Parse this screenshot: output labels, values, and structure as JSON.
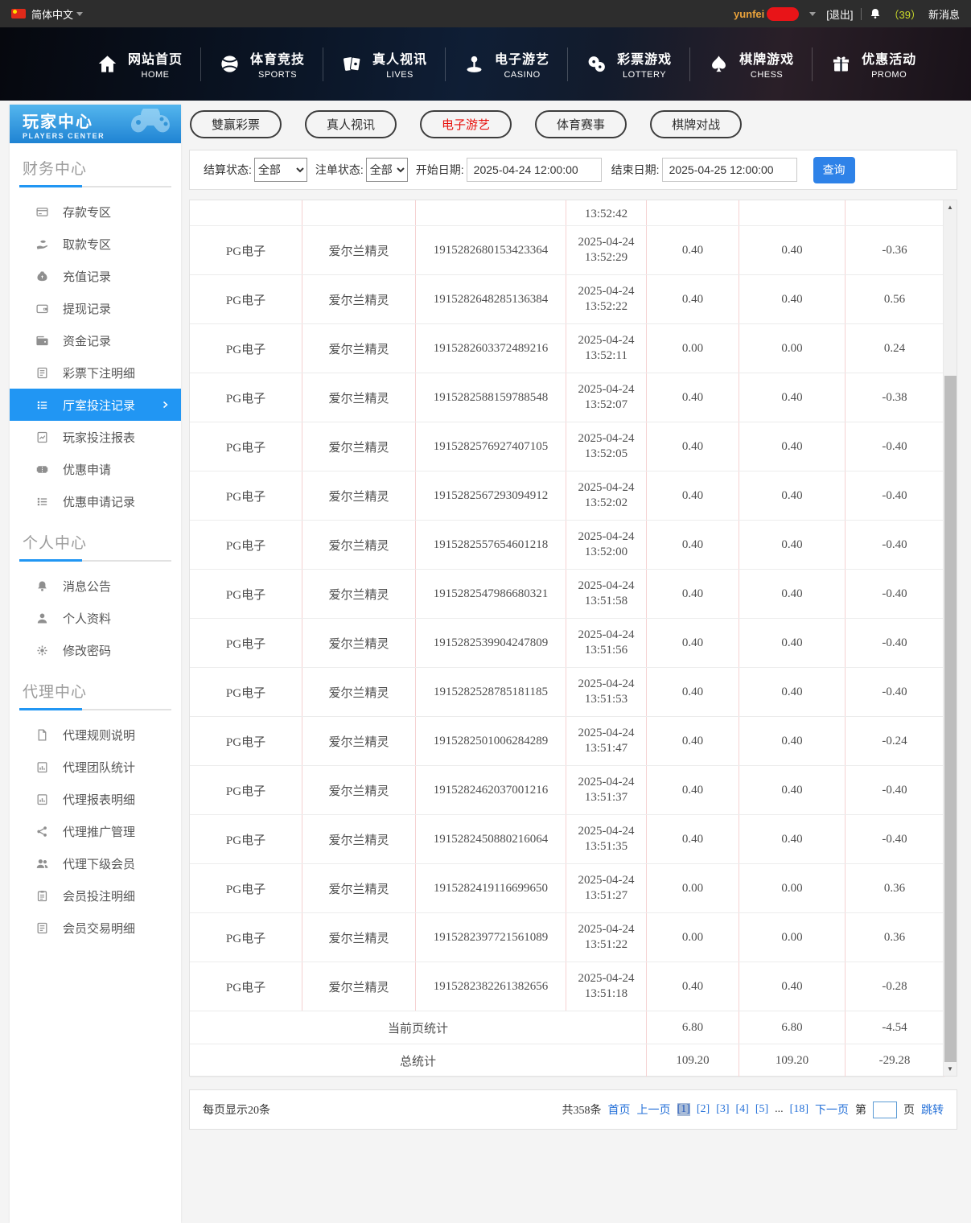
{
  "topbar": {
    "language": "简体中文",
    "username": "yunfei",
    "logout": "[退出]",
    "message_count": "（39）",
    "message_label": "新消息"
  },
  "nav": {
    "items": [
      {
        "zh": "网站首页",
        "en": "HOME",
        "icon": "home-icon"
      },
      {
        "zh": "体育竞技",
        "en": "SPORTS",
        "icon": "sports-ball-icon"
      },
      {
        "zh": "真人视讯",
        "en": "LIVES",
        "icon": "cards-icon"
      },
      {
        "zh": "电子游艺",
        "en": "CASINO",
        "icon": "casino-icon"
      },
      {
        "zh": "彩票游戏",
        "en": "LOTTERY",
        "icon": "lottery-balls-icon"
      },
      {
        "zh": "棋牌游戏",
        "en": "CHESS",
        "icon": "spade-icon"
      },
      {
        "zh": "优惠活动",
        "en": "PROMO",
        "icon": "gift-icon"
      }
    ]
  },
  "sidebar": {
    "title_zh": "玩家中心",
    "title_en": "PLAYERS CENTER",
    "sections": [
      {
        "title": "财务中心",
        "items": [
          {
            "label": "存款专区",
            "icon": "deposit-card-icon"
          },
          {
            "label": "取款专区",
            "icon": "withdraw-hand-icon"
          },
          {
            "label": "充值记录",
            "icon": "moneybag-icon"
          },
          {
            "label": "提现记录",
            "icon": "wallet-out-icon"
          },
          {
            "label": "资金记录",
            "icon": "funds-icon"
          },
          {
            "label": "彩票下注明细",
            "icon": "doc-lines-icon"
          },
          {
            "label": "厅室投注记录",
            "icon": "bullet-list-icon",
            "active": true
          },
          {
            "label": "玩家投注报表",
            "icon": "chart-doc-icon"
          },
          {
            "label": "优惠申请",
            "icon": "coupon-icon"
          },
          {
            "label": "优惠申请记录",
            "icon": "bullet-list-icon"
          }
        ]
      },
      {
        "title": "个人中心",
        "items": [
          {
            "label": "消息公告",
            "icon": "bell-icon"
          },
          {
            "label": "个人资料",
            "icon": "person-icon"
          },
          {
            "label": "修改密码",
            "icon": "gear-icon"
          }
        ]
      },
      {
        "title": "代理中心",
        "items": [
          {
            "label": "代理规则说明",
            "icon": "file-icon"
          },
          {
            "label": "代理团队统计",
            "icon": "report-icon"
          },
          {
            "label": "代理报表明细",
            "icon": "report-icon"
          },
          {
            "label": "代理推广管理",
            "icon": "share-icon"
          },
          {
            "label": "代理下级会员",
            "icon": "people-icon"
          },
          {
            "label": "会员投注明细",
            "icon": "clipboard-icon"
          },
          {
            "label": "会员交易明细",
            "icon": "doc-lines-icon"
          }
        ]
      }
    ]
  },
  "tabs": {
    "items": [
      {
        "label": "雙赢彩票"
      },
      {
        "label": "真人视讯"
      },
      {
        "label": "电子游艺",
        "active": true
      },
      {
        "label": "体育赛事"
      },
      {
        "label": "棋牌对战"
      }
    ]
  },
  "filters": {
    "settle_label": "结算状态:",
    "settle_value": "全部",
    "order_label": "注单状态:",
    "order_value": "全部",
    "start_label": "开始日期:",
    "start_value": "2025-04-24 12:00:00",
    "end_label": "结束日期:",
    "end_value": "2025-04-25 12:00:00",
    "search_label": "查询"
  },
  "table": {
    "partial_row_time": "13:52:42",
    "rows": [
      {
        "provider": "PG电子",
        "game": "爱尔兰精灵",
        "bet_id": "1915282680153423364",
        "date": "2025-04-24",
        "time": "13:52:29",
        "bet": "0.40",
        "valid": "0.40",
        "result": "-0.36"
      },
      {
        "provider": "PG电子",
        "game": "爱尔兰精灵",
        "bet_id": "1915282648285136384",
        "date": "2025-04-24",
        "time": "13:52:22",
        "bet": "0.40",
        "valid": "0.40",
        "result": "0.56"
      },
      {
        "provider": "PG电子",
        "game": "爱尔兰精灵",
        "bet_id": "1915282603372489216",
        "date": "2025-04-24",
        "time": "13:52:11",
        "bet": "0.00",
        "valid": "0.00",
        "result": "0.24"
      },
      {
        "provider": "PG电子",
        "game": "爱尔兰精灵",
        "bet_id": "1915282588159788548",
        "date": "2025-04-24",
        "time": "13:52:07",
        "bet": "0.40",
        "valid": "0.40",
        "result": "-0.38"
      },
      {
        "provider": "PG电子",
        "game": "爱尔兰精灵",
        "bet_id": "1915282576927407105",
        "date": "2025-04-24",
        "time": "13:52:05",
        "bet": "0.40",
        "valid": "0.40",
        "result": "-0.40"
      },
      {
        "provider": "PG电子",
        "game": "爱尔兰精灵",
        "bet_id": "1915282567293094912",
        "date": "2025-04-24",
        "time": "13:52:02",
        "bet": "0.40",
        "valid": "0.40",
        "result": "-0.40"
      },
      {
        "provider": "PG电子",
        "game": "爱尔兰精灵",
        "bet_id": "1915282557654601218",
        "date": "2025-04-24",
        "time": "13:52:00",
        "bet": "0.40",
        "valid": "0.40",
        "result": "-0.40"
      },
      {
        "provider": "PG电子",
        "game": "爱尔兰精灵",
        "bet_id": "1915282547986680321",
        "date": "2025-04-24",
        "time": "13:51:58",
        "bet": "0.40",
        "valid": "0.40",
        "result": "-0.40"
      },
      {
        "provider": "PG电子",
        "game": "爱尔兰精灵",
        "bet_id": "1915282539904247809",
        "date": "2025-04-24",
        "time": "13:51:56",
        "bet": "0.40",
        "valid": "0.40",
        "result": "-0.40"
      },
      {
        "provider": "PG电子",
        "game": "爱尔兰精灵",
        "bet_id": "1915282528785181185",
        "date": "2025-04-24",
        "time": "13:51:53",
        "bet": "0.40",
        "valid": "0.40",
        "result": "-0.40"
      },
      {
        "provider": "PG电子",
        "game": "爱尔兰精灵",
        "bet_id": "1915282501006284289",
        "date": "2025-04-24",
        "time": "13:51:47",
        "bet": "0.40",
        "valid": "0.40",
        "result": "-0.24"
      },
      {
        "provider": "PG电子",
        "game": "爱尔兰精灵",
        "bet_id": "1915282462037001216",
        "date": "2025-04-24",
        "time": "13:51:37",
        "bet": "0.40",
        "valid": "0.40",
        "result": "-0.40"
      },
      {
        "provider": "PG电子",
        "game": "爱尔兰精灵",
        "bet_id": "1915282450880216064",
        "date": "2025-04-24",
        "time": "13:51:35",
        "bet": "0.40",
        "valid": "0.40",
        "result": "-0.40"
      },
      {
        "provider": "PG电子",
        "game": "爱尔兰精灵",
        "bet_id": "1915282419116699650",
        "date": "2025-04-24",
        "time": "13:51:27",
        "bet": "0.00",
        "valid": "0.00",
        "result": "0.36"
      },
      {
        "provider": "PG电子",
        "game": "爱尔兰精灵",
        "bet_id": "1915282397721561089",
        "date": "2025-04-24",
        "time": "13:51:22",
        "bet": "0.00",
        "valid": "0.00",
        "result": "0.36"
      },
      {
        "provider": "PG电子",
        "game": "爱尔兰精灵",
        "bet_id": "1915282382261382656",
        "date": "2025-04-24",
        "time": "13:51:18",
        "bet": "0.40",
        "valid": "0.40",
        "result": "-0.28"
      }
    ],
    "summary_rows": [
      {
        "label": "当前页统计",
        "bet": "6.80",
        "valid": "6.80",
        "result": "-4.54"
      },
      {
        "label": "总统计",
        "bet": "109.20",
        "valid": "109.20",
        "result": "-29.28"
      }
    ]
  },
  "pagination": {
    "per_page": "每页显示20条",
    "total": "共358条",
    "first": "首页",
    "prev": "上一页",
    "pages": [
      "[1]",
      "[2]",
      "[3]",
      "[4]",
      "[5]",
      "...",
      "[18]"
    ],
    "current_page_index": 0,
    "next": "下一页",
    "goto_pre": "第",
    "goto_post": "页",
    "goto_btn": "跳转"
  },
  "colors": {
    "accent_blue": "#2196f3",
    "link_blue": "#2470d8",
    "active_red": "#e8110d",
    "search_btn_blue": "#2e82e8"
  }
}
